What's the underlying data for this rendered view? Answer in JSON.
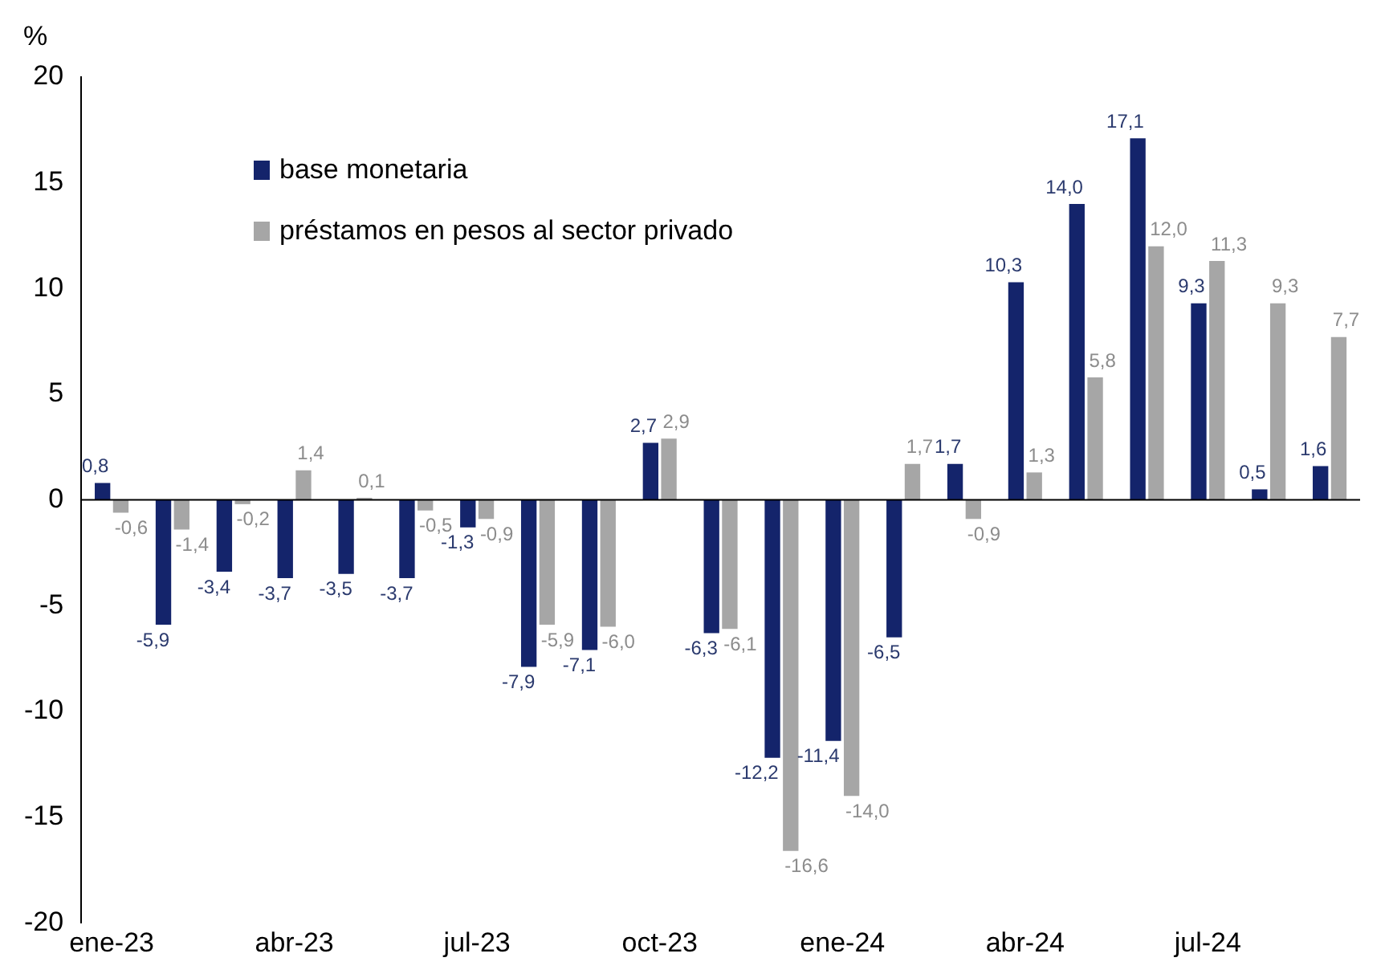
{
  "chart_data": {
    "type": "bar",
    "ylabel": "%",
    "categories": [
      "ene-23",
      null,
      null,
      "abr-23",
      null,
      null,
      "jul-23",
      null,
      null,
      "oct-23",
      null,
      null,
      "ene-24",
      null,
      null,
      "abr-24",
      null,
      null,
      "jul-24",
      null,
      null
    ],
    "series": [
      {
        "name": "base monetaria",
        "color": "#14246b",
        "values": [
          0.8,
          -5.9,
          -3.4,
          -3.7,
          -3.5,
          -3.7,
          -1.3,
          -7.9,
          -7.1,
          2.7,
          -6.3,
          -12.2,
          -11.4,
          -6.5,
          1.7,
          10.3,
          14.0,
          17.1,
          9.3,
          0.5,
          1.6
        ],
        "value_labels": [
          "0,8",
          "-5,9",
          "-3,4",
          "-3,7",
          "-3,5",
          "-3,7",
          "-1,3",
          "-7,9",
          "-7,1",
          "2,7",
          "-6,3",
          "-12,2",
          "-11,4",
          "-6,5",
          "1,7",
          "10,3",
          "14,0",
          "17,1",
          "9,3",
          "0,5",
          "1,6"
        ]
      },
      {
        "name": "préstamos en pesos al sector privado",
        "color": "#a6a6a6",
        "values": [
          -0.6,
          -1.4,
          -0.2,
          1.4,
          0.1,
          -0.5,
          -0.9,
          -5.9,
          -6.0,
          2.9,
          -6.1,
          -16.6,
          -14.0,
          1.7,
          -0.9,
          1.3,
          5.8,
          12.0,
          11.3,
          9.3,
          7.7
        ],
        "value_labels": [
          "-0,6",
          "-1,4",
          "-0,2",
          "1,4",
          "0,1",
          "-0,5",
          "-0,9",
          "-5,9",
          "-6,0",
          "2,9",
          "-6,1",
          "-16,6",
          "-14,0",
          "1,7",
          "-0,9",
          "1,3",
          "5,8",
          "12,0",
          "11,3",
          "9,3",
          "7,7"
        ]
      }
    ],
    "ylim": [
      -20,
      20
    ],
    "yticks": [
      -20,
      -15,
      -10,
      -5,
      0,
      5,
      10,
      15,
      20
    ],
    "grid": false,
    "legend": "top left",
    "ref_lines": [
      {
        "axis": "y",
        "value": 0,
        "color": "#000000"
      }
    ]
  }
}
